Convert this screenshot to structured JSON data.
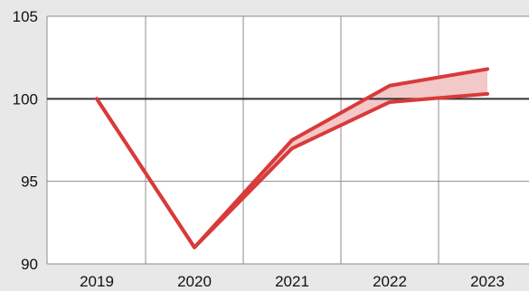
{
  "chart_data": {
    "type": "line",
    "x": [
      2019,
      2020,
      2021,
      2022,
      2023
    ],
    "x_tick_labels": [
      "2019",
      "2020",
      "2021",
      "2022",
      "2023"
    ],
    "y_ticks": [
      90,
      95,
      100,
      105
    ],
    "y_tick_labels": [
      "90",
      "95",
      "100",
      "105"
    ],
    "ylim": [
      90,
      105
    ],
    "reference_line": 100,
    "grid": true,
    "series": [
      {
        "values": [
          100,
          91,
          97.5,
          100.8,
          101.8
        ]
      },
      {
        "values": [
          100,
          91,
          97.0,
          99.8,
          100.3
        ]
      }
    ],
    "band_between_series": true,
    "colors": {
      "line": "#d93a3a",
      "band": "#f2c8c8",
      "reference": "#333333",
      "grid": "#8c8c8c",
      "plot_bg": "#ffffff",
      "page_bg": "#e8e8e8"
    }
  }
}
